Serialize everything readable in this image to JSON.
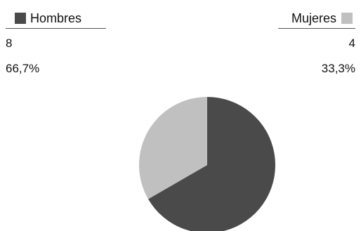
{
  "chart_data": {
    "type": "pie",
    "title": "",
    "categories": [
      "Hombres",
      "Mujeres"
    ],
    "values": [
      8,
      4
    ],
    "percent_labels": [
      "66,7%",
      "33,3%"
    ],
    "count_labels": [
      "8",
      "4"
    ],
    "colors": [
      "#4a4a4a",
      "#c0c0c0"
    ],
    "legend_placement": "top"
  }
}
